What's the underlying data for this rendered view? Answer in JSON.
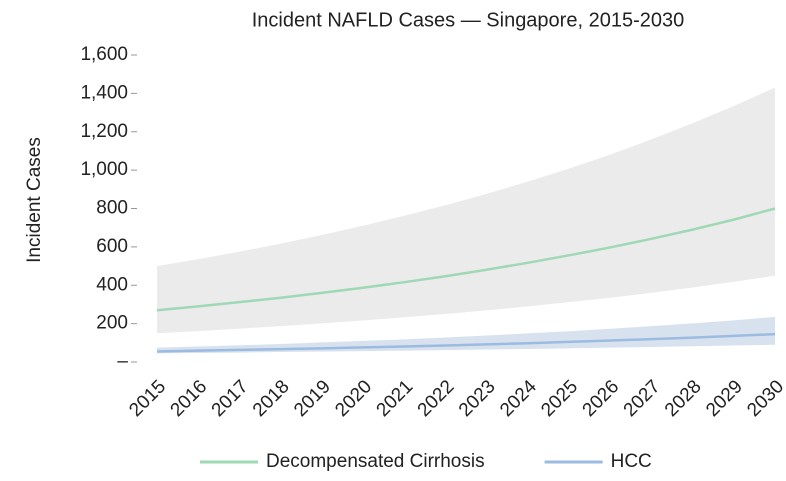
{
  "chart_data": {
    "type": "line",
    "title": "Incident NAFLD Cases — Singapore, 2015-2030",
    "y_label": "Incident Cases",
    "categories": [
      "2015",
      "2016",
      "2017",
      "2018",
      "2019",
      "2020",
      "2021",
      "2022",
      "2023",
      "2024",
      "2025",
      "2026",
      "2027",
      "2028",
      "2029",
      "2030"
    ],
    "series": [
      {
        "name": "Decompensated Cirrhosis",
        "color": "#9fd8b5",
        "band_color": "#ebebeb",
        "values": [
          270,
          290,
          312,
          335,
          360,
          387,
          416,
          447,
          481,
          517,
          556,
          597,
          642,
          690,
          742,
          800
        ],
        "upper": [
          500,
          536,
          575,
          617,
          662,
          710,
          762,
          817,
          876,
          940,
          1008,
          1081,
          1160,
          1244,
          1334,
          1430
        ],
        "lower": [
          150,
          161,
          174,
          187,
          201,
          216,
          233,
          250,
          269,
          290,
          312,
          335,
          361,
          388,
          418,
          450
        ]
      },
      {
        "name": "HCC",
        "color": "#9bbbe0",
        "band_color": "#d8e2ef",
        "values": [
          55,
          59,
          63,
          67,
          71,
          76,
          81,
          86,
          92,
          98,
          105,
          112,
          119,
          127,
          136,
          145
        ],
        "upper": [
          75,
          81,
          87,
          94,
          102,
          110,
          118,
          128,
          138,
          149,
          160,
          173,
          187,
          201,
          217,
          235
        ],
        "lower": [
          45,
          47,
          49,
          52,
          54,
          57,
          59,
          62,
          65,
          68,
          71,
          75,
          78,
          82,
          86,
          90
        ]
      }
    ],
    "ylim": [
      0,
      1600
    ],
    "yticks": [
      {
        "value": 0,
        "label": "–"
      },
      200,
      400,
      600,
      800,
      {
        "value": 1000,
        "label": "1,000"
      },
      {
        "value": 1200,
        "label": "1,200"
      },
      {
        "value": 1400,
        "label": "1,400"
      },
      {
        "value": 1600,
        "label": "1,600"
      }
    ],
    "legend": "bottom"
  }
}
